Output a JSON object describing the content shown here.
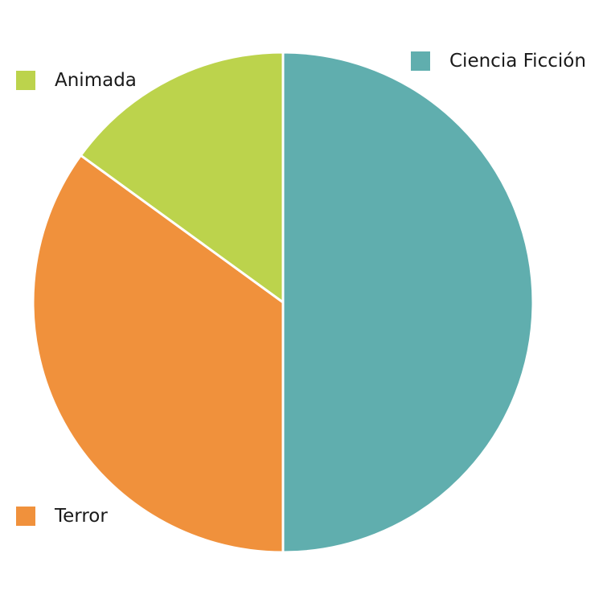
{
  "chart_data": {
    "type": "pie",
    "title": "",
    "slices": [
      {
        "label": "Ciencia Ficción",
        "value": 50,
        "color": "#60aeae"
      },
      {
        "label": "Terror",
        "value": 35,
        "color": "#f0913c"
      },
      {
        "label": "Animada",
        "value": 15,
        "color": "#bcd34c"
      }
    ],
    "start_angle_deg": 0,
    "direction": "clockwise",
    "legend": {
      "placement": "corners",
      "items": [
        {
          "label": "Ciencia Ficción",
          "color": "#60aeae"
        },
        {
          "label": "Animada",
          "color": "#bcd34c"
        },
        {
          "label": "Terror",
          "color": "#f0913c"
        }
      ]
    }
  }
}
